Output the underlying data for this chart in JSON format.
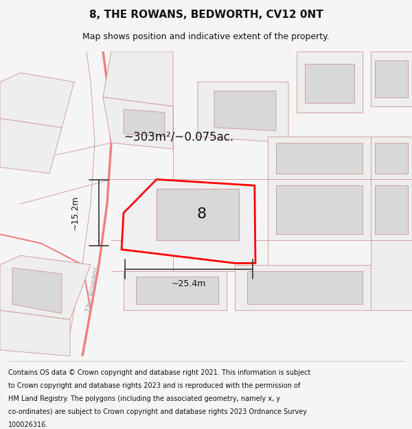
{
  "title": "8, THE ROWANS, BEDWORTH, CV12 0NT",
  "subtitle": "Map shows position and indicative extent of the property.",
  "footer_lines": [
    "Contains OS data © Crown copyright and database right 2021. This information is subject",
    "to Crown copyright and database rights 2023 and is reproduced with the permission of",
    "HM Land Registry. The polygons (including the associated geometry, namely x, y",
    "co-ordinates) are subject to Crown copyright and database rights 2023 Ordnance Survey",
    "100026316."
  ],
  "area_label": "~303m²/~0.075ac.",
  "width_label": "~25.4m",
  "height_label": "~15.2m",
  "plot_number": "8",
  "street_label": "The Rowans",
  "bg_color": "#f5f5f5",
  "map_bg": "#ffffff",
  "plot_border_color": "#ff0000",
  "dim_line_color": "#333333",
  "building_fill": "#d8d8d8",
  "road_line_color": "#f08080",
  "boundary_line_color": "#d0a0a0",
  "light_gray": "#eeeeee",
  "title_fontsize": 11,
  "subtitle_fontsize": 9,
  "footer_fontsize": 7
}
